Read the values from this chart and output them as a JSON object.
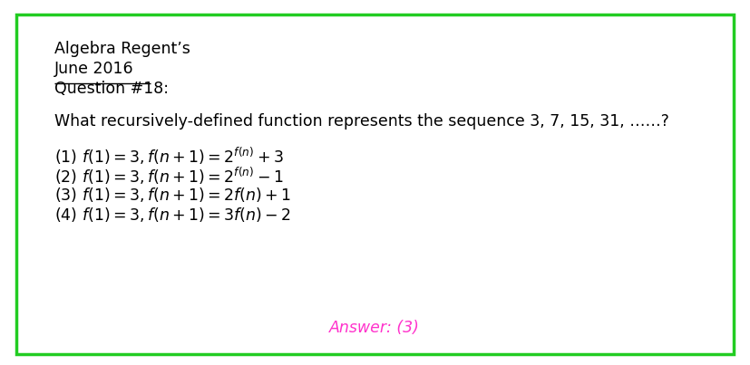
{
  "bg_color": "#ffffff",
  "border_color": "#22cc22",
  "border_linewidth": 2.5,
  "line1": "Algebra Regent’s",
  "line2": "June 2016",
  "line3": "Question #18:",
  "question": "What recursively-defined function represents the sequence 3, 7, 15, 31, ……?",
  "opt1": "(1) $f(1) = 3, f(n+1) = 2^{f(n)} + 3$",
  "opt2": "(2) $f(1) = 3, f(n+1) = 2^{f(n)} - 1$",
  "opt3": "(3) $f(1) = 3, f(n+1) = 2f(n) + 1$",
  "opt4": "(4) $f(1) = 3, f(n+1) = 3f(n) - 2$",
  "answer_text": "Answer: (3)",
  "answer_color": "#ff33cc",
  "text_color": "#000000",
  "fontsize": 12.5
}
